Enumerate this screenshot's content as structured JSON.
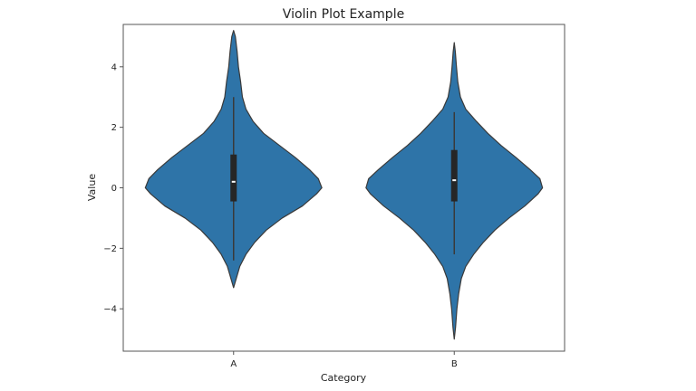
{
  "chart_data": {
    "type": "violin",
    "title": "Violin Plot Example",
    "xlabel": "Category",
    "ylabel": "Value",
    "categories": [
      "A",
      "B"
    ],
    "ylim": [
      -5.4,
      5.4
    ],
    "yticks": [
      -4,
      -2,
      0,
      2,
      4
    ],
    "ytick_labels": [
      "−4",
      "−2",
      "0",
      "2",
      "4"
    ],
    "grid": false,
    "colors": {
      "fill": "#2e74a8",
      "edge": "#3a3a3a",
      "box": "#262626",
      "whisker": "#3a3a3a",
      "median": "#ffffff",
      "axes": "#555555"
    },
    "violins": [
      {
        "category": "A",
        "min": -3.3,
        "max": 5.2,
        "whisker_low": -2.4,
        "whisker_high": 3.0,
        "q1": -0.45,
        "median": 0.2,
        "q3": 1.1,
        "density": [
          [
            -3.3,
            0.0
          ],
          [
            -3.0,
            0.03
          ],
          [
            -2.6,
            0.07
          ],
          [
            -2.2,
            0.14
          ],
          [
            -1.8,
            0.24
          ],
          [
            -1.4,
            0.37
          ],
          [
            -1.0,
            0.55
          ],
          [
            -0.6,
            0.78
          ],
          [
            -0.2,
            0.94
          ],
          [
            0.0,
            1.0
          ],
          [
            0.3,
            0.96
          ],
          [
            0.6,
            0.86
          ],
          [
            1.0,
            0.7
          ],
          [
            1.4,
            0.52
          ],
          [
            1.8,
            0.34
          ],
          [
            2.2,
            0.22
          ],
          [
            2.6,
            0.14
          ],
          [
            3.0,
            0.1
          ],
          [
            3.5,
            0.08
          ],
          [
            4.0,
            0.055
          ],
          [
            4.5,
            0.04
          ],
          [
            5.0,
            0.02
          ],
          [
            5.2,
            0.0
          ]
        ]
      },
      {
        "category": "B",
        "min": -5.0,
        "max": 4.8,
        "whisker_low": -2.2,
        "whisker_high": 2.5,
        "q1": -0.45,
        "median": 0.25,
        "q3": 1.25,
        "density": [
          [
            -5.0,
            0.0
          ],
          [
            -4.6,
            0.015
          ],
          [
            -4.0,
            0.03
          ],
          [
            -3.5,
            0.05
          ],
          [
            -3.0,
            0.08
          ],
          [
            -2.6,
            0.13
          ],
          [
            -2.2,
            0.22
          ],
          [
            -1.8,
            0.33
          ],
          [
            -1.4,
            0.46
          ],
          [
            -1.0,
            0.62
          ],
          [
            -0.6,
            0.8
          ],
          [
            -0.2,
            0.95
          ],
          [
            0.0,
            1.0
          ],
          [
            0.3,
            0.97
          ],
          [
            0.6,
            0.86
          ],
          [
            1.0,
            0.7
          ],
          [
            1.4,
            0.53
          ],
          [
            1.8,
            0.38
          ],
          [
            2.2,
            0.25
          ],
          [
            2.6,
            0.13
          ],
          [
            3.0,
            0.07
          ],
          [
            3.5,
            0.04
          ],
          [
            4.0,
            0.025
          ],
          [
            4.5,
            0.012
          ],
          [
            4.8,
            0.0
          ]
        ]
      }
    ]
  }
}
